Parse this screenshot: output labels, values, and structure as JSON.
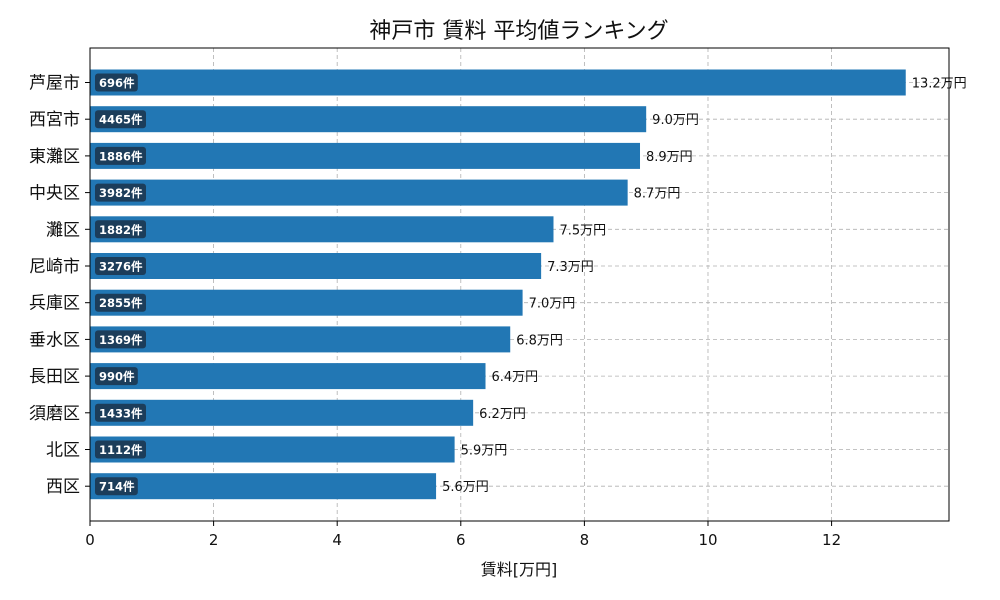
{
  "chart_data": {
    "type": "bar",
    "orientation": "horizontal",
    "title": "神戸市 賃料 平均値ランキング",
    "xlabel": "賃料[万円]",
    "ylabel": "",
    "xlim": [
      0,
      13.9
    ],
    "xticks": [
      0,
      2,
      4,
      6,
      8,
      10,
      12
    ],
    "grid": true,
    "bar_color": "#2277b4",
    "badge_color": "#1c3d5a",
    "categories": [
      "芦屋市",
      "西宮市",
      "東灘区",
      "中央区",
      "灘区",
      "尼崎市",
      "兵庫区",
      "垂水区",
      "長田区",
      "須磨区",
      "北区",
      "西区"
    ],
    "values": [
      13.2,
      9.0,
      8.9,
      8.7,
      7.5,
      7.3,
      7.0,
      6.8,
      6.4,
      6.2,
      5.9,
      5.6
    ],
    "value_labels": [
      "13.2万円",
      "9.0万円",
      "8.9万円",
      "8.7万円",
      "7.5万円",
      "7.3万円",
      "7.0万円",
      "6.8万円",
      "6.4万円",
      "6.2万円",
      "5.9万円",
      "5.6万円"
    ],
    "count_labels": [
      "696件",
      "4465件",
      "1886件",
      "3982件",
      "1882件",
      "3276件",
      "2855件",
      "1369件",
      "990件",
      "1433件",
      "1112件",
      "714件"
    ]
  }
}
